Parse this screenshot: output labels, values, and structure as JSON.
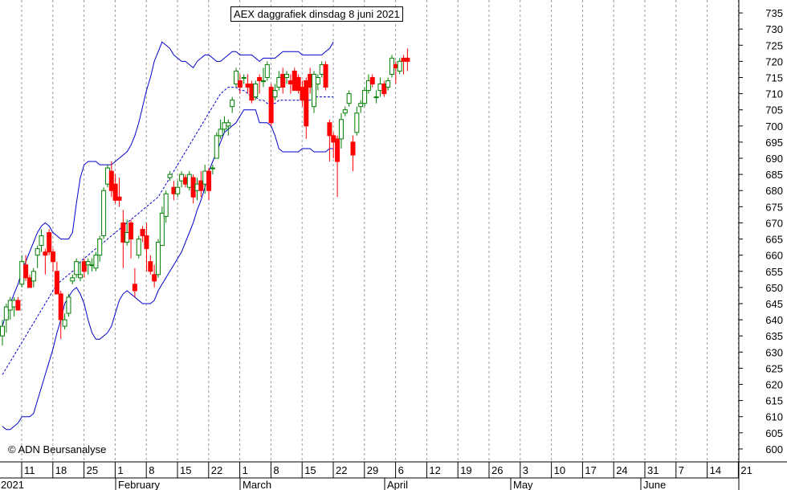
{
  "chart_data": {
    "type": "candlestick",
    "title": "AEX daggrafiek dinsdag 8 juni 2021",
    "watermark": "© ADN Beursanalyse",
    "ylim": [
      596,
      739
    ],
    "y_ticks": [
      600,
      605,
      610,
      615,
      620,
      625,
      630,
      635,
      640,
      645,
      650,
      655,
      660,
      665,
      670,
      675,
      680,
      685,
      690,
      695,
      700,
      705,
      710,
      715,
      720,
      725,
      730,
      735
    ],
    "grid": "vertical dotted",
    "colors": {
      "up": "#008000",
      "down": "#ff0000",
      "bands": "#0000cc",
      "ma": "#0000cc"
    },
    "day_ticks": [
      "11",
      "18",
      "25",
      "1",
      "8",
      "15",
      "22",
      "1",
      "8",
      "15",
      "22",
      "29",
      "6",
      "12",
      "19",
      "26",
      "3",
      "10",
      "17",
      "24",
      "31",
      "7",
      "14",
      "21"
    ],
    "months": [
      "2021",
      "February",
      "March",
      "April",
      "May",
      "June"
    ],
    "candles": [
      {
        "o": 635,
        "h": 640,
        "l": 632,
        "c": 638
      },
      {
        "o": 640,
        "h": 645,
        "l": 636,
        "c": 644
      },
      {
        "o": 643,
        "h": 647,
        "l": 640,
        "c": 646
      },
      {
        "o": 644,
        "h": 647,
        "l": 641,
        "c": 646
      },
      {
        "o": 646,
        "h": 647,
        "l": 643,
        "c": 643
      },
      {
        "o": 651,
        "h": 660,
        "l": 650,
        "c": 658
      },
      {
        "o": 657,
        "h": 660,
        "l": 652,
        "c": 653
      },
      {
        "o": 653,
        "h": 654,
        "l": 650,
        "c": 650
      },
      {
        "o": 652,
        "h": 656,
        "l": 650,
        "c": 655
      },
      {
        "o": 660,
        "h": 663,
        "l": 656,
        "c": 662
      },
      {
        "o": 663,
        "h": 668,
        "l": 661,
        "c": 666
      },
      {
        "o": 661,
        "h": 662,
        "l": 654,
        "c": 660
      },
      {
        "o": 667,
        "h": 668,
        "l": 660,
        "c": 661
      },
      {
        "o": 661,
        "h": 662,
        "l": 655,
        "c": 658
      },
      {
        "o": 655,
        "h": 658,
        "l": 649,
        "c": 648
      },
      {
        "o": 648,
        "h": 649,
        "l": 634,
        "c": 640
      },
      {
        "o": 638,
        "h": 642,
        "l": 637,
        "c": 640
      },
      {
        "o": 642,
        "h": 648,
        "l": 641,
        "c": 647
      },
      {
        "o": 652,
        "h": 654,
        "l": 651,
        "c": 653
      },
      {
        "o": 654,
        "h": 659,
        "l": 653,
        "c": 658
      },
      {
        "o": 653,
        "h": 658,
        "l": 652,
        "c": 654
      },
      {
        "o": 658,
        "h": 659,
        "l": 653,
        "c": 655
      },
      {
        "o": 657,
        "h": 659,
        "l": 654,
        "c": 658
      },
      {
        "o": 657,
        "h": 659,
        "l": 655,
        "c": 657
      },
      {
        "o": 656,
        "h": 661,
        "l": 655,
        "c": 660
      },
      {
        "o": 660,
        "h": 666,
        "l": 658,
        "c": 665
      },
      {
        "o": 666,
        "h": 681,
        "l": 665,
        "c": 680
      },
      {
        "o": 682,
        "h": 688,
        "l": 681,
        "c": 687
      },
      {
        "o": 686,
        "h": 689,
        "l": 678,
        "c": 680
      },
      {
        "o": 682,
        "h": 685,
        "l": 676,
        "c": 677
      },
      {
        "o": 678,
        "h": 684,
        "l": 675,
        "c": 677
      },
      {
        "o": 670,
        "h": 674,
        "l": 656,
        "c": 664
      },
      {
        "o": 664,
        "h": 671,
        "l": 663,
        "c": 667
      },
      {
        "o": 670,
        "h": 671,
        "l": 659,
        "c": 665
      },
      {
        "o": 651,
        "h": 656,
        "l": 647,
        "c": 649
      },
      {
        "o": 660,
        "h": 666,
        "l": 659,
        "c": 665
      },
      {
        "o": 668,
        "h": 669,
        "l": 664,
        "c": 666
      },
      {
        "o": 666,
        "h": 670,
        "l": 655,
        "c": 662
      },
      {
        "o": 658,
        "h": 660,
        "l": 654,
        "c": 655
      },
      {
        "o": 654,
        "h": 657,
        "l": 650,
        "c": 652
      },
      {
        "o": 654,
        "h": 665,
        "l": 653,
        "c": 664
      },
      {
        "o": 663,
        "h": 675,
        "l": 663,
        "c": 673
      },
      {
        "o": 672,
        "h": 680,
        "l": 670,
        "c": 679
      },
      {
        "o": 684,
        "h": 686,
        "l": 683,
        "c": 685
      },
      {
        "o": 681,
        "h": 683,
        "l": 677,
        "c": 679
      },
      {
        "o": 679,
        "h": 683,
        "l": 678,
        "c": 681
      },
      {
        "o": 683,
        "h": 686,
        "l": 681,
        "c": 685
      },
      {
        "o": 684,
        "h": 685,
        "l": 681,
        "c": 682
      },
      {
        "o": 681,
        "h": 686,
        "l": 680,
        "c": 685
      },
      {
        "o": 684,
        "h": 685,
        "l": 676,
        "c": 678
      },
      {
        "o": 680,
        "h": 684,
        "l": 677,
        "c": 682
      },
      {
        "o": 683,
        "h": 686,
        "l": 678,
        "c": 680
      },
      {
        "o": 682,
        "h": 688,
        "l": 679,
        "c": 686
      },
      {
        "o": 686,
        "h": 687,
        "l": 677,
        "c": 680
      },
      {
        "o": 687,
        "h": 688,
        "l": 685,
        "c": 687
      },
      {
        "o": 690,
        "h": 698,
        "l": 690,
        "c": 697
      },
      {
        "o": 697,
        "h": 702,
        "l": 696,
        "c": 699
      },
      {
        "o": 699,
        "h": 703,
        "l": 698,
        "c": 701
      },
      {
        "o": 700,
        "h": 702,
        "l": 697,
        "c": 701
      },
      {
        "o": 706,
        "h": 709,
        "l": 704,
        "c": 708
      },
      {
        "o": 713,
        "h": 718,
        "l": 712,
        "c": 717
      },
      {
        "o": 714,
        "h": 716,
        "l": 710,
        "c": 712
      },
      {
        "o": 715,
        "h": 716,
        "l": 713,
        "c": 715
      },
      {
        "o": 713,
        "h": 716,
        "l": 710,
        "c": 712
      },
      {
        "o": 713,
        "h": 714,
        "l": 707,
        "c": 708
      },
      {
        "o": 709,
        "h": 714,
        "l": 708,
        "c": 713
      },
      {
        "o": 715,
        "h": 716,
        "l": 710,
        "c": 714
      },
      {
        "o": 714,
        "h": 718,
        "l": 712,
        "c": 714
      },
      {
        "o": 715,
        "h": 720,
        "l": 714,
        "c": 719
      },
      {
        "o": 712,
        "h": 713,
        "l": 700,
        "c": 701
      },
      {
        "o": 709,
        "h": 713,
        "l": 708,
        "c": 711
      },
      {
        "o": 712,
        "h": 717,
        "l": 711,
        "c": 715
      },
      {
        "o": 716,
        "h": 718,
        "l": 710,
        "c": 712
      },
      {
        "o": 715,
        "h": 717,
        "l": 713,
        "c": 716
      },
      {
        "o": 714,
        "h": 716,
        "l": 710,
        "c": 713
      },
      {
        "o": 717,
        "h": 718,
        "l": 711,
        "c": 711
      },
      {
        "o": 715,
        "h": 716,
        "l": 710,
        "c": 711
      },
      {
        "o": 712,
        "h": 714,
        "l": 706,
        "c": 708
      },
      {
        "o": 714,
        "h": 715,
        "l": 696,
        "c": 700
      },
      {
        "o": 716,
        "h": 718,
        "l": 710,
        "c": 712
      },
      {
        "o": 706,
        "h": 717,
        "l": 704,
        "c": 716
      },
      {
        "o": 713,
        "h": 716,
        "l": 711,
        "c": 715
      },
      {
        "o": 716,
        "h": 720,
        "l": 715,
        "c": 719
      },
      {
        "o": 719,
        "h": 720,
        "l": 711,
        "c": 712
      },
      {
        "o": 701,
        "h": 702,
        "l": 689,
        "c": 697
      },
      {
        "o": 697,
        "h": 698,
        "l": 690,
        "c": 695
      },
      {
        "o": 696,
        "h": 697,
        "l": 678,
        "c": 689
      },
      {
        "o": 696,
        "h": 704,
        "l": 693,
        "c": 702
      },
      {
        "o": 704,
        "h": 706,
        "l": 703,
        "c": 705
      },
      {
        "o": 707,
        "h": 711,
        "l": 706,
        "c": 710
      },
      {
        "o": 695,
        "h": 697,
        "l": 686,
        "c": 691
      },
      {
        "o": 698,
        "h": 706,
        "l": 697,
        "c": 704
      },
      {
        "o": 706,
        "h": 708,
        "l": 704,
        "c": 707
      },
      {
        "o": 707,
        "h": 712,
        "l": 706,
        "c": 711
      },
      {
        "o": 711,
        "h": 716,
        "l": 710,
        "c": 714
      },
      {
        "o": 715,
        "h": 716,
        "l": 712,
        "c": 713
      },
      {
        "o": 709,
        "h": 711,
        "l": 707,
        "c": 709
      },
      {
        "o": 711,
        "h": 715,
        "l": 709,
        "c": 713
      },
      {
        "o": 713,
        "h": 714,
        "l": 709,
        "c": 710
      },
      {
        "o": 712,
        "h": 715,
        "l": 711,
        "c": 714
      },
      {
        "o": 716,
        "h": 722,
        "l": 715,
        "c": 721
      },
      {
        "o": 719,
        "h": 720,
        "l": 713,
        "c": 718
      },
      {
        "o": 717,
        "h": 721,
        "l": 716,
        "c": 720
      },
      {
        "o": 721,
        "h": 722,
        "l": 716,
        "c": 720
      },
      {
        "o": 721,
        "h": 724,
        "l": 717,
        "c": 720
      }
    ],
    "series": [
      {
        "values": [
          607,
          606,
          606,
          607,
          608,
          610,
          610,
          610,
          611,
          615,
          619,
          623,
          627,
          631,
          636,
          640,
          645,
          647,
          649,
          650,
          648,
          645,
          640,
          636,
          634,
          634,
          635,
          636,
          638,
          642,
          646,
          648,
          649,
          648,
          647,
          646,
          645,
          645,
          645,
          646,
          649,
          651,
          653,
          655,
          657,
          659,
          661,
          664,
          667,
          670,
          674,
          677,
          681,
          686,
          689,
          692,
          695,
          698,
          699,
          700,
          701,
          703,
          705,
          705,
          705,
          705,
          701,
          701,
          701,
          700,
          697,
          693,
          692,
          692,
          692,
          692,
          692,
          693,
          693,
          693,
          692,
          692,
          692,
          692,
          693,
          693
        ]
      },
      {
        "values": [
          623,
          625,
          627,
          629,
          631,
          633,
          635,
          637,
          639,
          641,
          643,
          645,
          647,
          649,
          651,
          652,
          653,
          654,
          655,
          656,
          658,
          659,
          660,
          661,
          662,
          663,
          664,
          665,
          666,
          667,
          668,
          669,
          670,
          671,
          672,
          673,
          674,
          675,
          676,
          677,
          678,
          680,
          682,
          684,
          686,
          688,
          690,
          692,
          694,
          696,
          698,
          700,
          702,
          704,
          706,
          708,
          710,
          711,
          712,
          712,
          712,
          711,
          711,
          710,
          709,
          709,
          708,
          708,
          707,
          707,
          707,
          708,
          708,
          708,
          708,
          708,
          708,
          708,
          708,
          708,
          709,
          709,
          709,
          709,
          709,
          709
        ]
      },
      {
        "values": [
          638,
          642,
          645,
          648,
          651,
          655,
          658,
          661,
          664,
          667,
          669,
          670,
          669,
          667,
          666,
          665,
          665,
          665,
          667,
          676,
          684,
          688,
          689,
          689,
          689,
          688,
          688,
          688,
          688,
          689,
          690,
          691,
          692,
          694,
          697,
          701,
          706,
          711,
          715,
          720,
          723,
          726,
          725,
          724,
          722,
          721,
          720,
          720,
          719,
          718,
          720,
          721,
          722,
          722,
          721,
          720,
          720,
          721,
          722,
          723,
          723,
          722,
          722,
          722,
          722,
          721,
          720,
          721,
          721,
          721,
          721,
          722,
          723,
          723,
          723,
          723,
          723,
          722,
          722,
          722,
          722,
          722,
          722,
          723,
          724,
          726
        ]
      }
    ]
  }
}
